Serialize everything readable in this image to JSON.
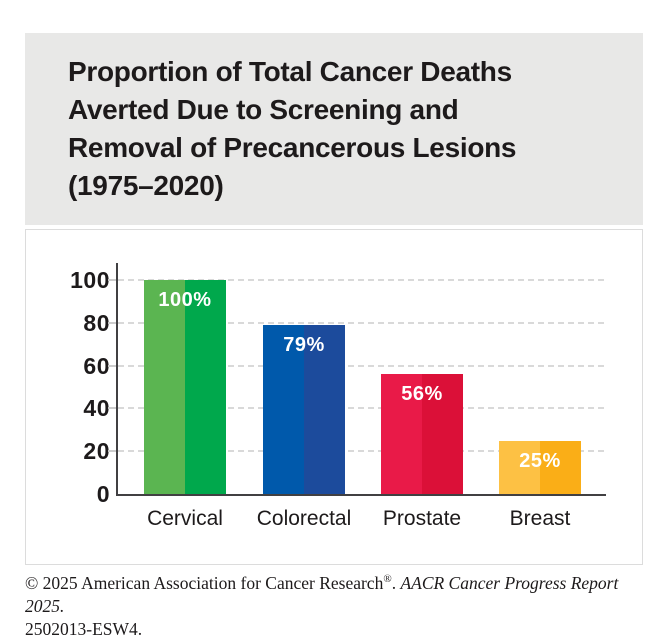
{
  "title_panel": {
    "background": "#e8e8e7",
    "title_lines": [
      "Proportion of Total Cancer Deaths",
      "Averted Due to Screening and",
      "Removal of Precancerous Lesions",
      "(1975–2020)"
    ]
  },
  "chart_data": {
    "type": "bar",
    "title": "Proportion of Total Cancer Deaths Averted Due to Screening and Removal of Precancerous Lesions (1975–2020)",
    "categories": [
      "Cervical",
      "Colorectal",
      "Prostate",
      "Breast"
    ],
    "values": [
      100,
      79,
      56,
      25
    ],
    "value_labels": [
      "100%",
      "79%",
      "56%",
      "25%"
    ],
    "bar_colors": [
      {
        "light": "#5bb551",
        "dark": "#00a84c"
      },
      {
        "light": "#0059ab",
        "dark": "#1c4b9c"
      },
      {
        "light": "#e91a48",
        "dark": "#db1038"
      },
      {
        "light": "#fdc144",
        "dark": "#faae17"
      }
    ],
    "xlabel": "",
    "ylabel": "",
    "ylim": [
      0,
      100
    ],
    "yticks": [
      0,
      20,
      40,
      60,
      80,
      100
    ],
    "grid": "horizontal-dashed",
    "gridline_color": "#d9d9d9",
    "axis_color": "#414042",
    "value_label_color": "#ffffff",
    "legend": "none"
  },
  "footer": {
    "copyright_text": "© 2025 American Association for Cancer Research",
    "registered_mark": "®",
    "copyright_period": ". ",
    "report_title_italic": "AACR Cancer Progress Report 2025.",
    "second_line": "2502013-ESW4."
  }
}
